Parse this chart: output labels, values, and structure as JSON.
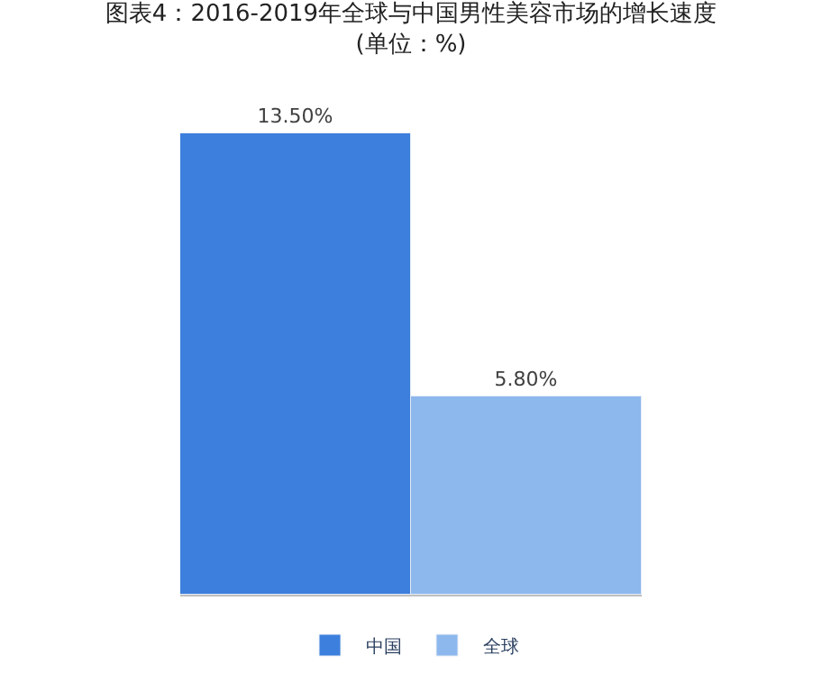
{
  "chart_data": {
    "type": "bar",
    "title": "图表4：2016-2019年全球与中国男性美容市场的增长速度\n(单位：%)",
    "categories": [
      null
    ],
    "series": [
      {
        "name": "中国",
        "color": "#3d7fdc",
        "values": [
          13.5
        ],
        "value_labels": [
          "13.50%"
        ]
      },
      {
        "name": "全球",
        "color": "#8db8ee",
        "values": [
          5.8
        ],
        "value_labels": [
          "5.80%"
        ]
      }
    ],
    "legend": "bottom",
    "tick_labels": false
  }
}
